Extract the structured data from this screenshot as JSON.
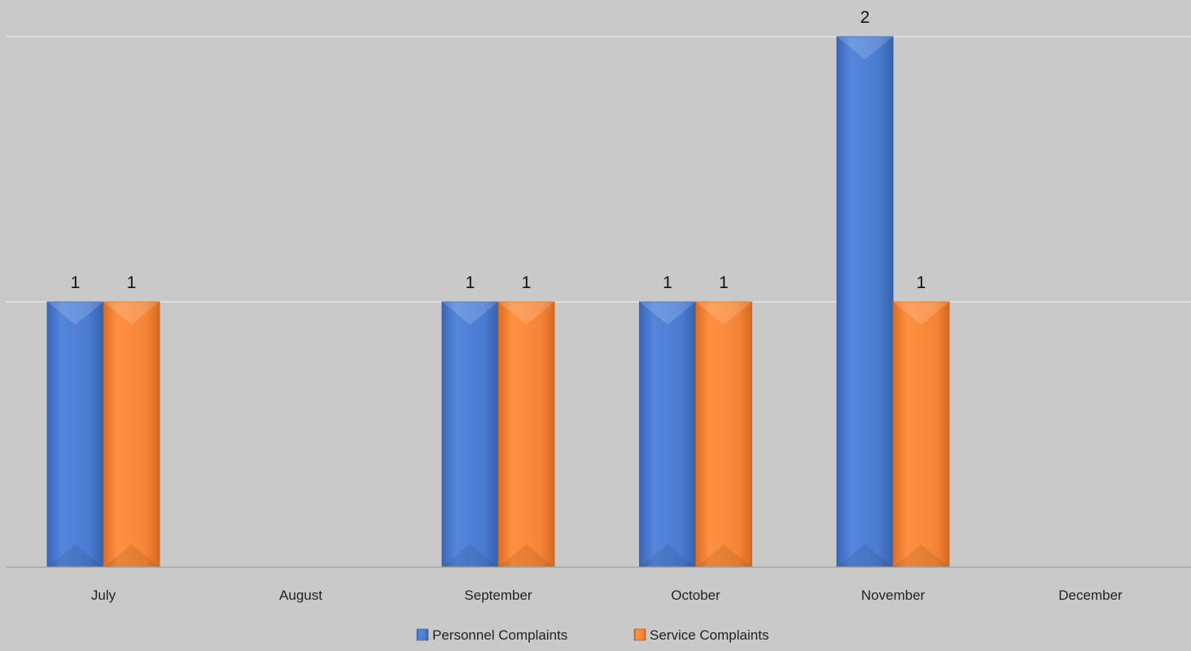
{
  "chart_data": {
    "type": "bar",
    "title": "",
    "xlabel": "",
    "ylabel": "",
    "categories": [
      "July",
      "August",
      "September",
      "October",
      "November",
      "December"
    ],
    "series": [
      {
        "name": "Personnel Complaints",
        "color": "#4472c4",
        "values": [
          1,
          null,
          1,
          1,
          2,
          null
        ]
      },
      {
        "name": "Service Complaints",
        "color": "#ed7d31",
        "values": [
          1,
          null,
          1,
          1,
          1,
          null
        ]
      }
    ],
    "ylim": [
      0,
      2
    ],
    "grid": true,
    "data_labels": true,
    "legend": "bottom",
    "background": "#c9c9c9",
    "gridline_color": "#e6e6e6"
  }
}
